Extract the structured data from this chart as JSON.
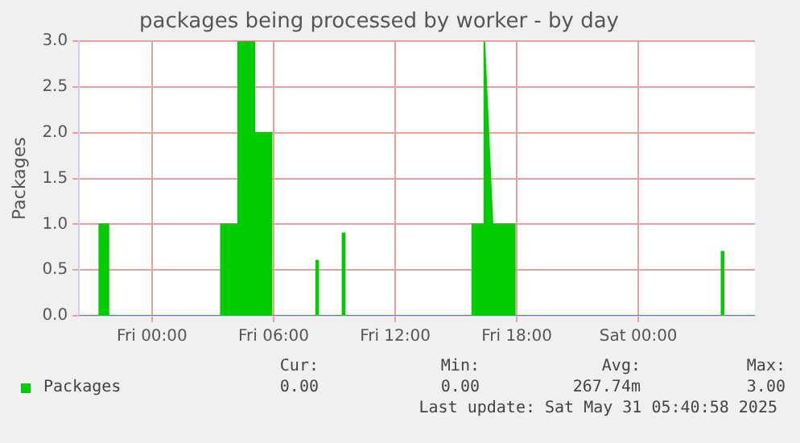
{
  "chart_data": {
    "type": "area",
    "title": "packages being processed by worker - by day",
    "ylabel": "Packages",
    "x": [
      "2025-05-29T20:24",
      "2025-05-29T21:24",
      "2025-05-29T21:24",
      "2025-05-29T21:51",
      "2025-05-29T21:51",
      "2025-05-30T03:24",
      "2025-05-30T03:24",
      "2025-05-30T04:15",
      "2025-05-30T04:15",
      "2025-05-30T05:03",
      "2025-05-30T05:03",
      "2025-05-30T05:54",
      "2025-05-30T05:54",
      "2025-05-30T08:06",
      "2025-05-30T08:06",
      "2025-05-30T08:12",
      "2025-05-30T08:12",
      "2025-05-30T09:24",
      "2025-05-30T09:24",
      "2025-05-30T09:30",
      "2025-05-30T09:30",
      "2025-05-30T15:48",
      "2025-05-30T15:48",
      "2025-05-30T16:21",
      "2025-05-30T16:24",
      "2025-05-30T16:36",
      "2025-05-30T16:48",
      "2025-05-30T17:54",
      "2025-05-30T17:54",
      "2025-05-31T04:06",
      "2025-05-31T04:06",
      "2025-05-31T04:12",
      "2025-05-31T04:12",
      "2025-05-31T05:45"
    ],
    "series": [
      {
        "name": "Packages",
        "color": "#00cc00",
        "values": [
          0,
          0,
          1,
          1,
          0,
          0,
          1,
          1,
          3,
          3,
          2,
          2,
          0,
          0,
          0.6,
          0.6,
          0,
          0,
          0.9,
          0.9,
          0,
          0,
          1,
          1,
          3,
          2,
          1,
          1,
          0,
          0,
          0.7,
          0.7,
          0,
          0
        ]
      }
    ],
    "xlim": [
      "2025-05-29T20:24",
      "2025-05-31T05:45"
    ],
    "xticks": [
      {
        "value": "2025-05-30T00:00",
        "label": "Fri 00:00"
      },
      {
        "value": "2025-05-30T06:00",
        "label": "Fri 06:00"
      },
      {
        "value": "2025-05-30T12:00",
        "label": "Fri 12:00"
      },
      {
        "value": "2025-05-30T18:00",
        "label": "Fri 18:00"
      },
      {
        "value": "2025-05-31T00:00",
        "label": "Sat 00:00"
      }
    ],
    "ylim": [
      0,
      3
    ],
    "yticks": [
      {
        "value": 0,
        "label": "0.0"
      },
      {
        "value": 0.5,
        "label": "0.5"
      },
      {
        "value": 1,
        "label": "1.0"
      },
      {
        "value": 1.5,
        "label": "1.5"
      },
      {
        "value": 2,
        "label": "2.0"
      },
      {
        "value": 2.5,
        "label": "2.5"
      },
      {
        "value": 3,
        "label": "3.0"
      }
    ],
    "grid": true,
    "legend": "bottom left",
    "annotations": [
      "Cur:",
      "0.00",
      "Min:",
      "0.00",
      "Avg:",
      "267.74m",
      "Max:",
      "3.00",
      "Last update: Sat May 31 05:40:58 2025"
    ]
  }
}
